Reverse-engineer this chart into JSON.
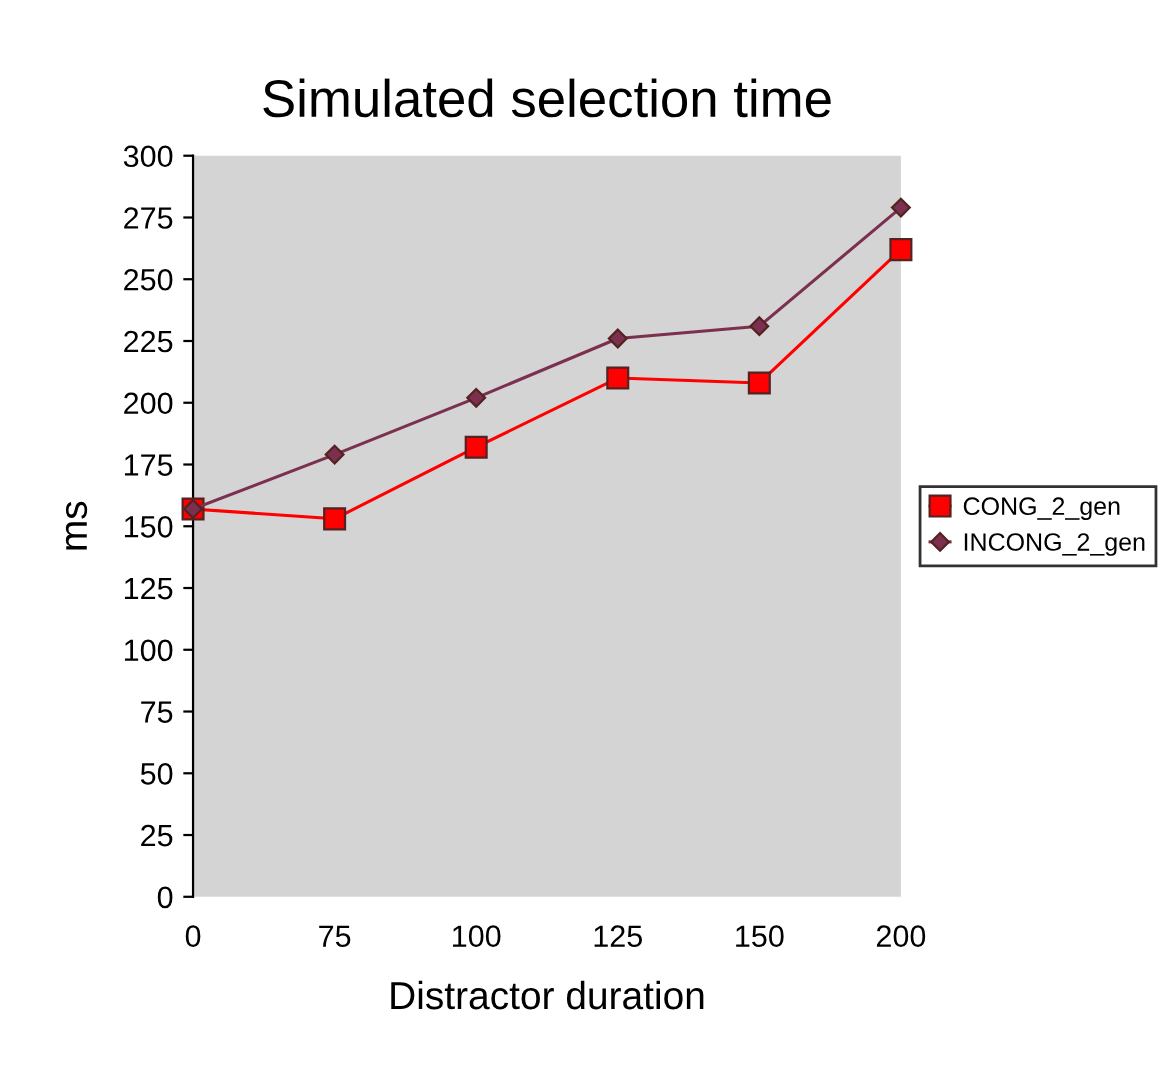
{
  "chart_data": {
    "type": "line",
    "title": "Simulated selection time",
    "xlabel": "Distractor duration",
    "ylabel": "ms",
    "categories": [
      "0",
      "75",
      "100",
      "125",
      "150",
      "200"
    ],
    "series": [
      {
        "name": "CONG_2_gen",
        "color": "#ff0000",
        "marker": "square",
        "values": [
          157,
          153,
          182,
          210,
          208,
          262
        ]
      },
      {
        "name": "INCONG_2_gen",
        "color": "#7b3050",
        "marker": "diamond",
        "values": [
          157,
          179,
          202,
          226,
          231,
          279
        ]
      }
    ],
    "ylim": [
      0,
      300
    ],
    "yticks": [
      0,
      25,
      50,
      75,
      100,
      125,
      150,
      175,
      200,
      225,
      250,
      275,
      300
    ],
    "grid": false,
    "legend": "right",
    "line_style": "solid"
  }
}
